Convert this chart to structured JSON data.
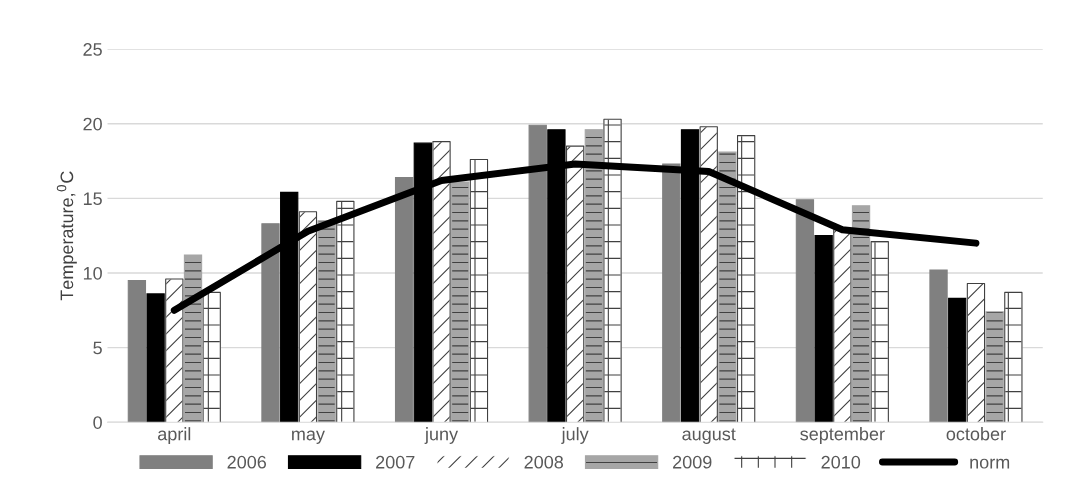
{
  "chart_data": {
    "type": "bar",
    "ylabel": "Temperature,$^{0}$C",
    "categories": [
      "april",
      "may",
      "juny",
      "july",
      "august",
      "september",
      "october"
    ],
    "series": [
      {
        "name": "2006",
        "color": "#808080",
        "values": [
          9.5,
          13.3,
          16.4,
          19.9,
          17.3,
          14.9,
          10.2
        ]
      },
      {
        "name": "2007",
        "color": "#000000",
        "values": [
          8.6,
          15.4,
          18.7,
          19.6,
          19.6,
          12.5,
          8.3
        ]
      },
      {
        "name": "2008",
        "color": "#ffffff",
        "values": [
          9.6,
          14.1,
          18.8,
          18.5,
          19.8,
          12.9,
          9.3
        ]
      },
      {
        "name": "2009",
        "color": "#a6a6a6",
        "values": [
          11.2,
          13.5,
          16.1,
          19.6,
          18.1,
          14.5,
          7.4
        ]
      },
      {
        "name": "2010",
        "color": "#ffffff",
        "values": [
          8.7,
          14.8,
          17.6,
          20.3,
          19.2,
          12.1,
          8.7
        ]
      },
      {
        "name": "norm",
        "type": "line",
        "color": "#000000",
        "values": [
          7.5,
          12.8,
          16.2,
          17.3,
          16.8,
          12.9,
          12.0
        ]
      }
    ],
    "ylim": [
      0,
      25
    ],
    "yticks": [
      0,
      5,
      10,
      15,
      20,
      25
    ],
    "grid": "y",
    "legend": "bottom"
  }
}
